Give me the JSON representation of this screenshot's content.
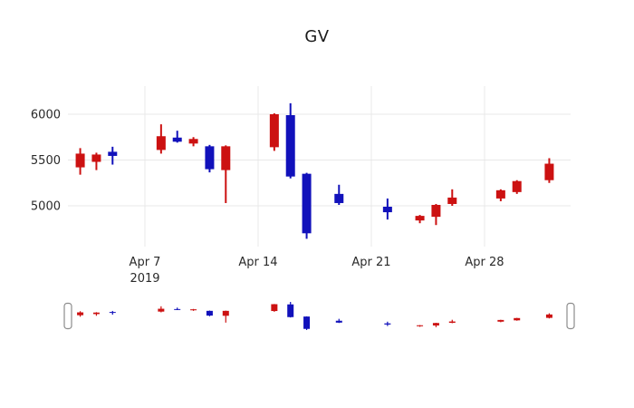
{
  "title": "GV",
  "chart_data": {
    "type": "candlestick",
    "title": "GV",
    "x_axis": {
      "ticks": [
        {
          "label": "Apr 7",
          "day": 7
        },
        {
          "label": "Apr 14",
          "day": 14
        },
        {
          "label": "Apr 21",
          "day": 21
        },
        {
          "label": "Apr 28",
          "day": 28
        }
      ],
      "year_label": "2019",
      "year_under_tick_day": 7
    },
    "y_axis": {
      "ticks": [
        5000,
        5500,
        6000
      ],
      "range": [
        4550,
        6310
      ]
    },
    "colors": {
      "increasing": "#cc1111",
      "decreasing": "#1111bb",
      "grid": "#e8e8e8",
      "text": "#2a2a2a",
      "handle_stroke": "#8c8c8c"
    },
    "legend": "none",
    "grid": "on",
    "candles": [
      {
        "date": "Apr 3",
        "day": 3,
        "open": 5420,
        "high": 5630,
        "low": 5340,
        "close": 5570
      },
      {
        "date": "Apr 4",
        "day": 4,
        "open": 5480,
        "high": 5580,
        "low": 5390,
        "close": 5560
      },
      {
        "date": "Apr 5",
        "day": 5,
        "open": 5590,
        "high": 5645,
        "low": 5450,
        "close": 5545
      },
      {
        "date": "Apr 8",
        "day": 8,
        "open": 5610,
        "high": 5890,
        "low": 5570,
        "close": 5760
      },
      {
        "date": "Apr 9",
        "day": 9,
        "open": 5745,
        "high": 5820,
        "low": 5690,
        "close": 5700
      },
      {
        "date": "Apr 10",
        "day": 10,
        "open": 5680,
        "high": 5750,
        "low": 5650,
        "close": 5730
      },
      {
        "date": "Apr 11",
        "day": 11,
        "open": 5650,
        "high": 5665,
        "low": 5365,
        "close": 5400
      },
      {
        "date": "Apr 12",
        "day": 12,
        "open": 5390,
        "high": 5660,
        "low": 5030,
        "close": 5650
      },
      {
        "date": "Apr 15",
        "day": 15,
        "open": 5640,
        "high": 6010,
        "low": 5600,
        "close": 6000
      },
      {
        "date": "Apr 16",
        "day": 16,
        "open": 5990,
        "high": 6120,
        "low": 5300,
        "close": 5320
      },
      {
        "date": "Apr 17",
        "day": 17,
        "open": 5350,
        "high": 5360,
        "low": 4640,
        "close": 4700
      },
      {
        "date": "Apr 19",
        "day": 19,
        "open": 5130,
        "high": 5230,
        "low": 5010,
        "close": 5030
      },
      {
        "date": "Apr 22",
        "day": 22,
        "open": 4990,
        "high": 5080,
        "low": 4850,
        "close": 4930
      },
      {
        "date": "Apr 24",
        "day": 24,
        "open": 4840,
        "high": 4900,
        "low": 4810,
        "close": 4890
      },
      {
        "date": "Apr 25",
        "day": 25,
        "open": 4880,
        "high": 5020,
        "low": 4790,
        "close": 5010
      },
      {
        "date": "Apr 26",
        "day": 26,
        "open": 5020,
        "high": 5180,
        "low": 5000,
        "close": 5090
      },
      {
        "date": "Apr 29",
        "day": 29,
        "open": 5080,
        "high": 5180,
        "low": 5050,
        "close": 5170
      },
      {
        "date": "Apr 30",
        "day": 30,
        "open": 5150,
        "high": 5280,
        "low": 5130,
        "close": 5270
      },
      {
        "date": "May 2",
        "day": 32,
        "open": 5280,
        "high": 5520,
        "low": 5250,
        "close": 5460
      }
    ]
  }
}
